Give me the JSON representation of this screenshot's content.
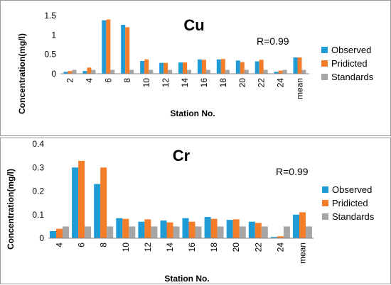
{
  "chart_data": [
    {
      "type": "bar",
      "title": "Cu",
      "annotation": "R=0.99",
      "xlabel": "Station No.",
      "ylabel": "Concentration(mg/l)",
      "ylim": [
        0,
        1.5
      ],
      "yticks": [
        "0",
        "0.5",
        "1",
        "1.5"
      ],
      "grid": false,
      "legend_position": "right",
      "categories": [
        "2",
        "4",
        "6",
        "8",
        "10",
        "12",
        "14",
        "16",
        "18",
        "20",
        "22",
        "24",
        "mean"
      ],
      "series": [
        {
          "name": "Observed",
          "color": "#1f9bd6",
          "values": [
            0.05,
            0.07,
            1.38,
            1.26,
            0.33,
            0.28,
            0.29,
            0.37,
            0.37,
            0.34,
            0.32,
            0.05,
            0.42
          ]
        },
        {
          "name": "Pridicted",
          "color": "#f47d2a",
          "values": [
            0.07,
            0.16,
            1.4,
            1.2,
            0.37,
            0.28,
            0.29,
            0.36,
            0.38,
            0.3,
            0.36,
            0.08,
            0.42
          ]
        },
        {
          "name": "Standards",
          "color": "#a6a6a6",
          "values": [
            0.1,
            0.1,
            0.1,
            0.1,
            0.1,
            0.1,
            0.1,
            0.1,
            0.1,
            0.1,
            0.1,
            0.1,
            0.1
          ]
        }
      ]
    },
    {
      "type": "bar",
      "title": "Cr",
      "annotation": "R=0.99",
      "xlabel": "Station No.",
      "ylabel": "Concentration(mg/l)",
      "ylim": [
        0,
        0.4
      ],
      "yticks": [
        "0",
        "0.1",
        "0.2",
        "0.3",
        "0.4"
      ],
      "grid": false,
      "legend_position": "right",
      "categories": [
        "4",
        "6",
        "8",
        "10",
        "12",
        "14",
        "16",
        "18",
        "20",
        "22",
        "24",
        "mean"
      ],
      "series": [
        {
          "name": "Observed",
          "color": "#1f9bd6",
          "values": [
            0.03,
            0.3,
            0.23,
            0.085,
            0.07,
            0.075,
            0.085,
            0.09,
            0.078,
            0.07,
            0.005,
            0.1
          ]
        },
        {
          "name": "Pridicted",
          "color": "#f47d2a",
          "values": [
            0.04,
            0.328,
            0.3,
            0.082,
            0.08,
            0.067,
            0.07,
            0.082,
            0.08,
            0.065,
            0.008,
            0.11
          ]
        },
        {
          "name": "Standards",
          "color": "#a6a6a6",
          "values": [
            0.05,
            0.05,
            0.05,
            0.05,
            0.05,
            0.05,
            0.05,
            0.05,
            0.05,
            0.05,
            0.05,
            0.05
          ]
        }
      ]
    }
  ]
}
